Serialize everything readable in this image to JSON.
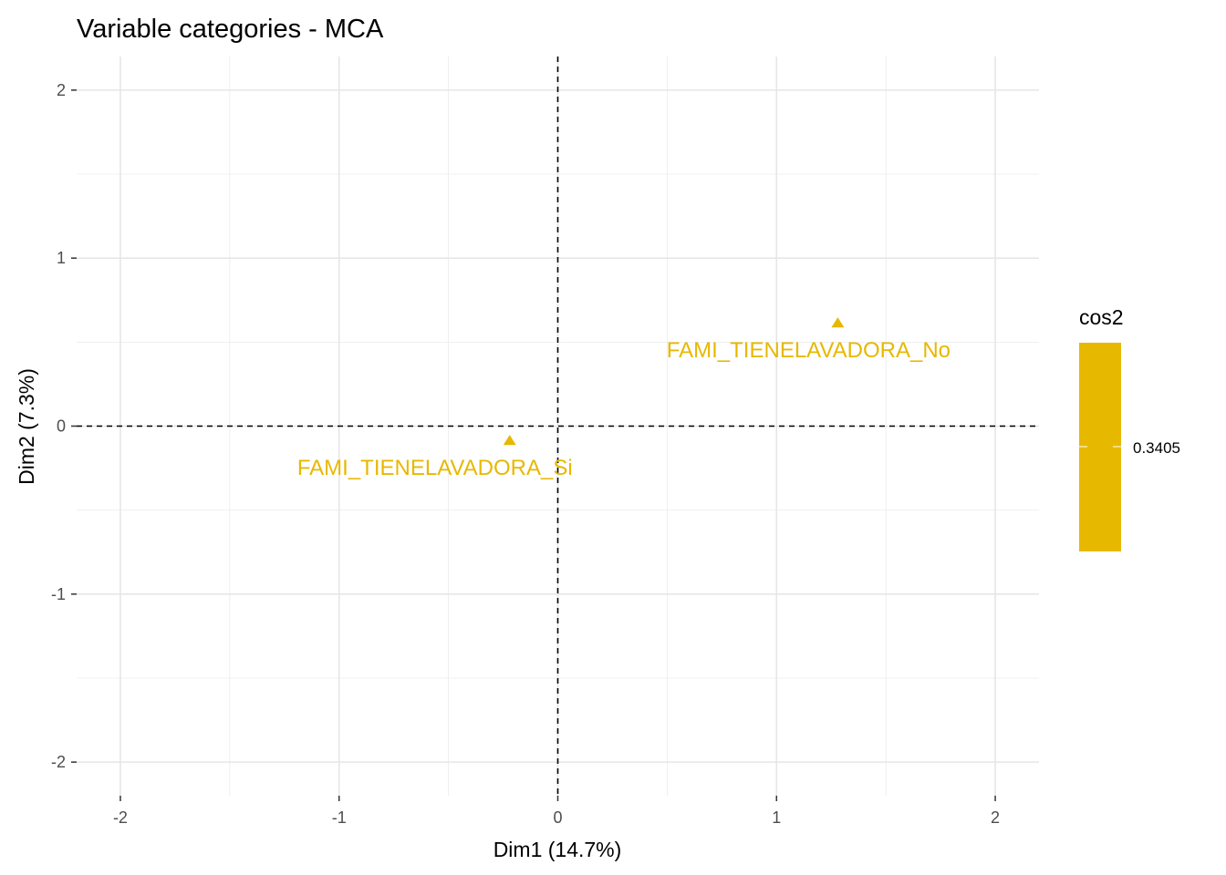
{
  "chart_data": {
    "type": "scatter",
    "title": "Variable categories - MCA",
    "xlabel": "Dim1 (14.7%)",
    "ylabel": "Dim2 (7.3%)",
    "xlim": [
      -2.2,
      2.2
    ],
    "ylim": [
      -2.2,
      2.2
    ],
    "xticks": [
      -2,
      -1,
      0,
      1,
      2
    ],
    "yticks": [
      -2,
      -1,
      0,
      1,
      2
    ],
    "xtick_labels": [
      "-2",
      "-1",
      "0",
      "1",
      "2"
    ],
    "ytick_labels": [
      "-2",
      "-1",
      "0",
      "1",
      "2"
    ],
    "grid": true,
    "reference_lines": {
      "x": 0,
      "y": 0,
      "style": "dashed"
    },
    "marker": "triangle",
    "point_color": "#E7B800",
    "points": [
      {
        "label": "FAMI_TIENELAVADORA_No",
        "x": 1.28,
        "y": 0.61,
        "cos2": 0.3405
      },
      {
        "label": "FAMI_TIENELAVADORA_Si",
        "x": -0.22,
        "y": -0.09,
        "cos2": 0.3405
      }
    ],
    "legend": {
      "title": "cos2",
      "position": "right",
      "labels": [
        "0.3405"
      ],
      "color": "#E7B800"
    }
  }
}
